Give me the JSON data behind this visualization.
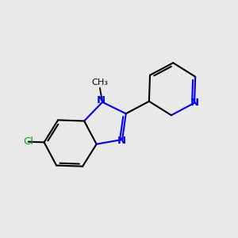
{
  "background_color": "#e9e9e9",
  "bond_color": "#000000",
  "nitrogen_color": "#0000ff",
  "chlorine_color": "#00aa00",
  "bond_width": 1.5,
  "figsize": [
    3.0,
    3.0
  ],
  "dpi": 100,
  "xlim": [
    -4.5,
    4.5
  ],
  "ylim": [
    -3.5,
    3.5
  ],
  "label_fontsize": 9.5
}
